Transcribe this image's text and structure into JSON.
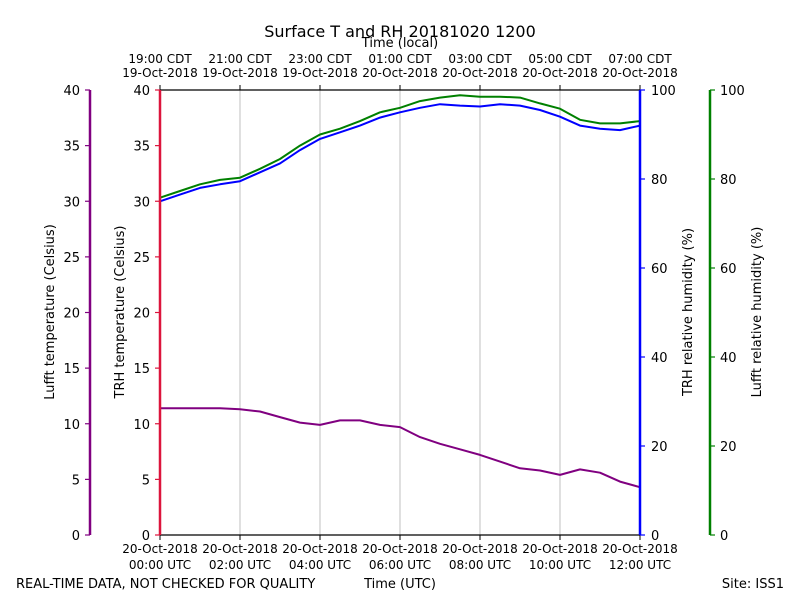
{
  "chart_data": {
    "type": "line",
    "title": "Surface T and RH 20181020 1200",
    "top_axis_label": "Time (local)",
    "top_ticks": [
      {
        "line1": "19:00 CDT",
        "line2": "19-Oct-2018",
        "hour": 0
      },
      {
        "line1": "21:00 CDT",
        "line2": "19-Oct-2018",
        "hour": 2
      },
      {
        "line1": "23:00 CDT",
        "line2": "19-Oct-2018",
        "hour": 4
      },
      {
        "line1": "01:00 CDT",
        "line2": "20-Oct-2018",
        "hour": 6
      },
      {
        "line1": "03:00 CDT",
        "line2": "20-Oct-2018",
        "hour": 8
      },
      {
        "line1": "05:00 CDT",
        "line2": "20-Oct-2018",
        "hour": 10
      },
      {
        "line1": "07:00 CDT",
        "line2": "20-Oct-2018",
        "hour": 12
      }
    ],
    "xlabel": "Time (UTC)",
    "x_ticks": [
      {
        "line1": "20-Oct-2018",
        "line2": "00:00 UTC",
        "hour": 0
      },
      {
        "line1": "20-Oct-2018",
        "line2": "02:00 UTC",
        "hour": 2
      },
      {
        "line1": "20-Oct-2018",
        "line2": "04:00 UTC",
        "hour": 4
      },
      {
        "line1": "20-Oct-2018",
        "line2": "06:00 UTC",
        "hour": 6
      },
      {
        "line1": "20-Oct-2018",
        "line2": "08:00 UTC",
        "hour": 8
      },
      {
        "line1": "20-Oct-2018",
        "line2": "10:00 UTC",
        "hour": 10
      },
      {
        "line1": "20-Oct-2018",
        "line2": "12:00 UTC",
        "hour": 12
      }
    ],
    "xlim": [
      0,
      12
    ],
    "grid": "vertical",
    "axes": {
      "lufft_temp": {
        "label": "Lufft temperature (Celsius)",
        "color": "#800080",
        "ylim": [
          0,
          40
        ],
        "ticks": [
          0,
          5,
          10,
          15,
          20,
          25,
          30,
          35,
          40
        ]
      },
      "trh_temp": {
        "label": "TRH temperature (Celsius)",
        "color": "#dc143c",
        "ylim": [
          0,
          40
        ],
        "ticks": [
          0,
          5,
          10,
          15,
          20,
          25,
          30,
          35,
          40
        ]
      },
      "trh_rh": {
        "label": "TRH relative humidity (%)",
        "color": "#0000ff",
        "ylim": [
          0,
          100
        ],
        "ticks": [
          0,
          20,
          40,
          60,
          80,
          100
        ]
      },
      "lufft_rh": {
        "label": "Lufft relative humidity (%)",
        "color": "#008000",
        "ylim": [
          0,
          100
        ],
        "ticks": [
          0,
          20,
          40,
          60,
          80,
          100
        ]
      }
    },
    "series": [
      {
        "key": "lufft_temp",
        "axis": "lufft_temp",
        "color": "#800080",
        "x": [
          0,
          0.5,
          1,
          1.5,
          2,
          2.5,
          3,
          3.5,
          4,
          4.5,
          5,
          5.5,
          6,
          6.5,
          7,
          7.5,
          8,
          8.5,
          9,
          9.5,
          10,
          10.5,
          11,
          11.5,
          12
        ],
        "y": [
          11.4,
          11.4,
          11.4,
          11.4,
          11.3,
          11.1,
          10.6,
          10.1,
          9.9,
          10.3,
          10.3,
          9.9,
          9.7,
          8.8,
          8.2,
          7.7,
          7.2,
          6.6,
          6.0,
          5.8,
          5.4,
          5.9,
          5.6,
          4.8,
          4.3
        ]
      },
      {
        "key": "trh_rh",
        "axis": "trh_rh",
        "color": "#0000ff",
        "x": [
          0,
          0.5,
          1,
          1.5,
          2,
          2.5,
          3,
          3.5,
          4,
          4.5,
          5,
          5.5,
          6,
          6.5,
          7,
          7.5,
          8,
          8.5,
          9,
          9.5,
          10,
          10.5,
          11,
          11.5,
          12
        ],
        "y": [
          75.0,
          76.5,
          78.0,
          78.8,
          79.5,
          81.5,
          83.5,
          86.5,
          89.0,
          90.5,
          92.0,
          93.8,
          95.0,
          96.0,
          96.8,
          96.5,
          96.3,
          96.8,
          96.5,
          95.5,
          94.0,
          92.0,
          91.3,
          91.0,
          92.0
        ]
      },
      {
        "key": "lufft_rh",
        "axis": "lufft_rh",
        "color": "#008000",
        "x": [
          0,
          0.5,
          1,
          1.5,
          2,
          2.5,
          3,
          3.5,
          4,
          4.5,
          5,
          5.5,
          6,
          6.5,
          7,
          7.5,
          8,
          8.5,
          9,
          9.5,
          10,
          10.5,
          11,
          11.5,
          12
        ],
        "y": [
          75.8,
          77.3,
          78.8,
          79.8,
          80.3,
          82.3,
          84.5,
          87.5,
          90.0,
          91.3,
          93.0,
          95.0,
          96.0,
          97.5,
          98.3,
          98.8,
          98.5,
          98.5,
          98.3,
          97.0,
          95.8,
          93.3,
          92.5,
          92.5,
          93.0
        ]
      }
    ]
  },
  "footer": {
    "left_note": "REAL-TIME DATA, NOT CHECKED FOR QUALITY",
    "site": "Site: ISS1"
  }
}
